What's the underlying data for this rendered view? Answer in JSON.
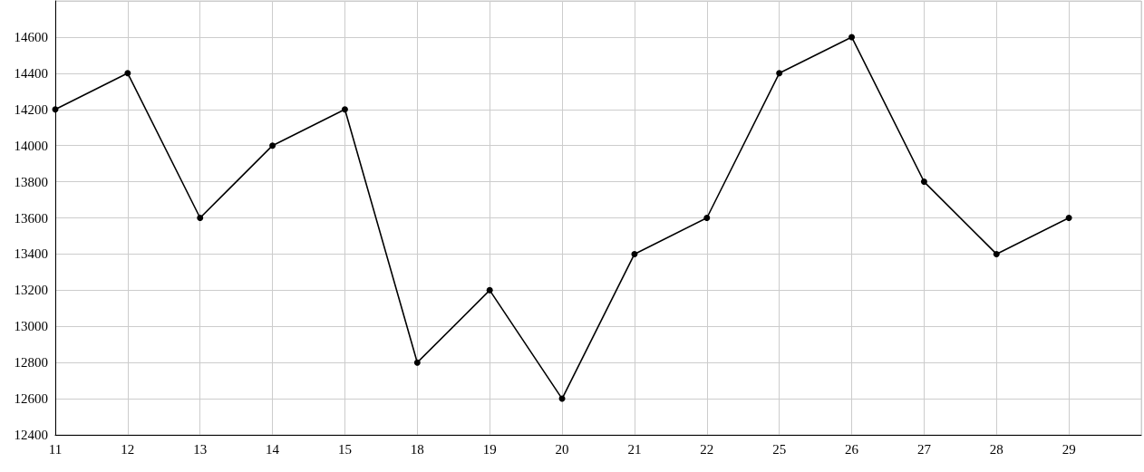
{
  "chart_data": {
    "type": "line",
    "categories": [
      "11",
      "12",
      "13",
      "14",
      "15",
      "18",
      "19",
      "20",
      "21",
      "22",
      "25",
      "26",
      "27",
      "28",
      "29",
      null
    ],
    "values": [
      14200,
      14400,
      13600,
      14000,
      14200,
      12800,
      13200,
      12600,
      13400,
      13600,
      14400,
      14600,
      13800,
      13400,
      13600,
      null
    ],
    "color": "#000000",
    "ylim": [
      12400,
      14800
    ],
    "yticks": [
      12400,
      12600,
      12800,
      13000,
      13200,
      13400,
      13600,
      13800,
      14000,
      14200,
      14400,
      14600
    ],
    "grid": true,
    "marker": "circle",
    "line_style": "solid"
  }
}
